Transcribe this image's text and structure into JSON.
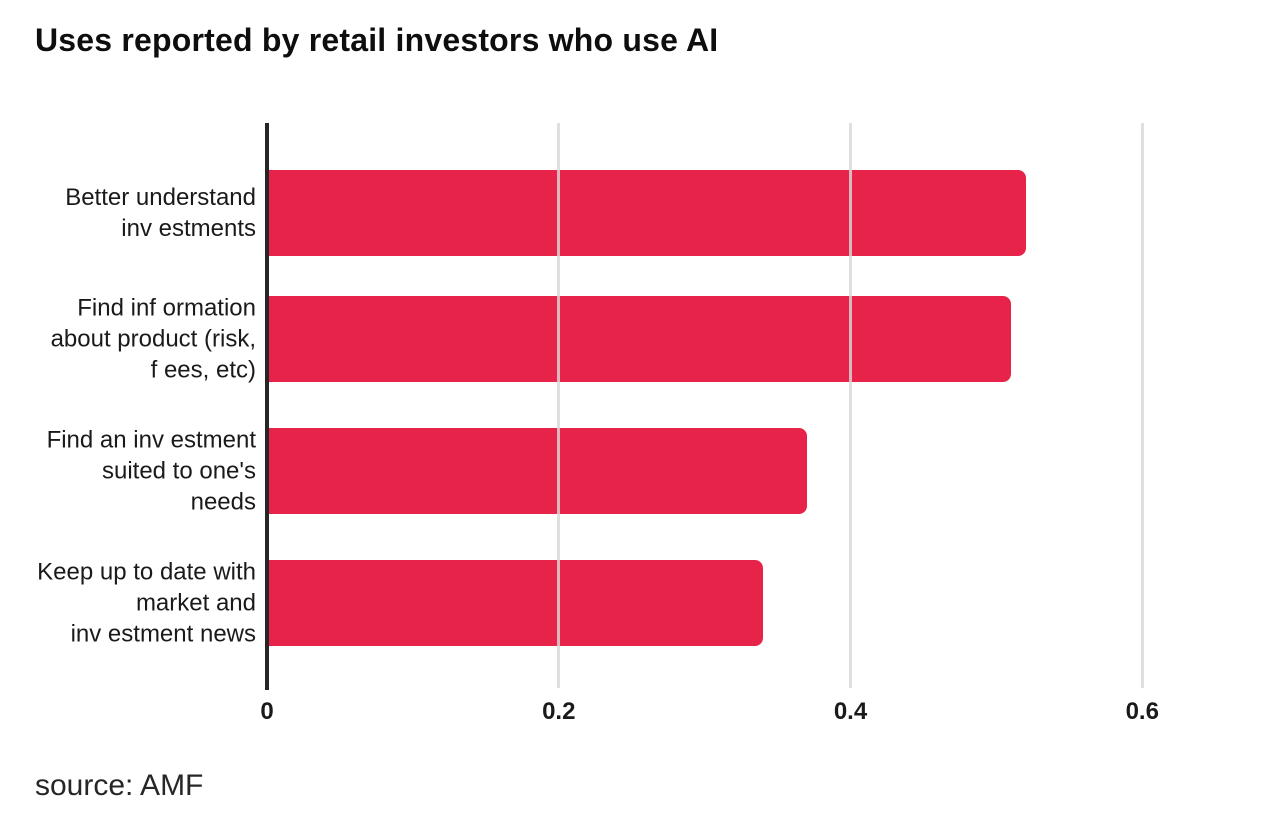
{
  "source": "source: AMF",
  "chart_data": {
    "type": "bar",
    "orientation": "horizontal",
    "title": "Uses reported by retail investors who use AI",
    "categories": [
      "Better understand\ninv estments",
      "Find inf ormation\nabout product (risk,\nf ees, etc)",
      "Find an inv estment\nsuited to one's\nneeds",
      "Keep up to date with\nmarket and\ninv estment news"
    ],
    "values": [
      0.52,
      0.51,
      0.37,
      0.34
    ],
    "x_ticks": [
      0,
      0.2,
      0.4,
      0.6
    ],
    "x_tick_labels": [
      "0",
      "0.2",
      "0.4",
      "0.6"
    ],
    "xlim": [
      0,
      0.667
    ],
    "xlabel": "",
    "ylabel": "",
    "grid": "vertical-gridlines-over-bars",
    "legend": "none",
    "bar_color": "#E8234A",
    "grid_color": "#D8D8D8",
    "grid_over_bar_alpha": 0.82,
    "axis_line_color": "#262626",
    "title_color": "#0e0e0e",
    "label_color": "#1a1a1a"
  }
}
